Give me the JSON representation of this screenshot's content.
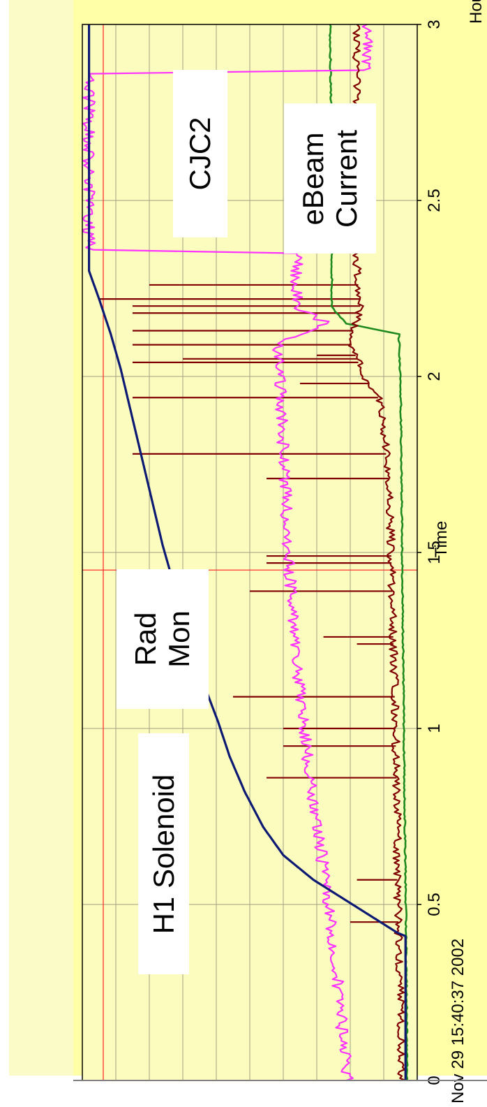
{
  "chart_data": {
    "type": "line",
    "orientation": "rotated-90-ccw",
    "x_axis": {
      "ticks": [
        "0",
        "0.5",
        "1",
        "1.5",
        "2",
        "2.5",
        "3"
      ],
      "tick_values": [
        0,
        0.5,
        1,
        1.5,
        2,
        2.5,
        3
      ],
      "label": "Time",
      "unit": "Hours",
      "range": [
        0,
        3
      ]
    },
    "timestamp": "Nov 29 15:40:37 2002",
    "grid": true,
    "marker_time": 1.45,
    "series": [
      {
        "name": "H1 Solenoid",
        "color": "#0d1a73",
        "x": [
          0.0,
          0.41,
          0.42,
          0.57,
          0.64,
          0.72,
          0.82,
          0.92,
          1.02,
          1.12,
          1.22,
          1.32,
          1.42,
          1.52,
          1.62,
          1.72,
          1.82,
          1.92,
          2.02,
          2.12,
          2.22,
          2.3,
          3.0
        ],
        "y": [
          0.965,
          0.965,
          0.94,
          0.69,
          0.6,
          0.54,
          0.485,
          0.44,
          0.405,
          0.365,
          0.33,
          0.3,
          0.27,
          0.24,
          0.215,
          0.19,
          0.165,
          0.14,
          0.115,
          0.085,
          0.05,
          0.02,
          0.02
        ]
      },
      {
        "name": "Rad Mon",
        "color": "#ff33ff",
        "x": [
          0.0,
          0.1,
          0.3,
          0.5,
          0.7,
          0.9,
          1.1,
          1.3,
          1.5,
          1.7,
          1.9,
          2.1,
          2.15,
          2.2,
          2.35,
          2.36,
          2.5,
          2.7,
          2.86,
          2.87,
          3.0
        ],
        "y": [
          0.795,
          0.78,
          0.76,
          0.735,
          0.705,
          0.675,
          0.65,
          0.63,
          0.615,
          0.605,
          0.595,
          0.585,
          0.73,
          0.64,
          0.64,
          0.02,
          0.02,
          0.02,
          0.02,
          0.85,
          0.85
        ]
      },
      {
        "name": "CJC2",
        "color": "#800000",
        "x": [
          0.0,
          0.2,
          0.4,
          0.6,
          0.8,
          1.0,
          1.2,
          1.4,
          1.6,
          1.7,
          1.8,
          1.9,
          1.95,
          2.0,
          2.1,
          2.2,
          2.3,
          2.5,
          2.7,
          2.9,
          3.0
        ],
        "y": [
          0.955,
          0.95,
          0.945,
          0.94,
          0.94,
          0.935,
          0.93,
          0.925,
          0.92,
          0.915,
          0.905,
          0.895,
          0.88,
          0.84,
          0.8,
          0.83,
          0.82,
          0.82,
          0.82,
          0.82,
          0.82
        ]
      },
      {
        "name": "eBeam Current",
        "color": "#1e8a1e",
        "x": [
          0.0,
          0.5,
          1.0,
          1.5,
          2.0,
          2.12,
          2.15,
          2.18,
          2.19,
          2.2,
          2.5,
          2.8,
          3.0
        ],
        "y": [
          0.97,
          0.966,
          0.96,
          0.955,
          0.95,
          0.945,
          0.79,
          0.76,
          0.75,
          0.745,
          0.745,
          0.742,
          0.74
        ]
      }
    ],
    "annotations": [
      {
        "name": "H1 Solenoid",
        "lines": [
          "H1 Solenoid"
        ]
      },
      {
        "name": "Rad Mon",
        "lines": [
          "Rad",
          "Mon"
        ]
      },
      {
        "name": "CJC2",
        "lines": [
          "CJC2"
        ]
      },
      {
        "name": "eBeam Current",
        "lines": [
          "eBeam",
          "Current"
        ]
      }
    ],
    "spike_series": {
      "series": "CJC2",
      "times": [
        0.22,
        0.45,
        0.57,
        0.86,
        0.95,
        1.0,
        1.09,
        1.24,
        1.26,
        1.39,
        1.47,
        1.49,
        1.71,
        1.78,
        1.94,
        1.98,
        2.04,
        2.05,
        2.06,
        2.09,
        2.13,
        2.18,
        2.2,
        2.22,
        2.26,
        2.63
      ],
      "reach": [
        0.95,
        0.8,
        0.82,
        0.55,
        0.6,
        0.6,
        0.45,
        0.82,
        0.72,
        0.5,
        0.55,
        0.55,
        0.55,
        0.15,
        0.15,
        0.65,
        0.15,
        0.3,
        0.7,
        0.15,
        0.15,
        0.15,
        0.15,
        0.05,
        0.2,
        0.85
      ]
    }
  },
  "colors": {
    "plot_background": "#fcfcbf",
    "frame_background": "#ffffa8",
    "grid": "#a0a080",
    "marker_line": "#ff2020",
    "axis": "#000000"
  }
}
